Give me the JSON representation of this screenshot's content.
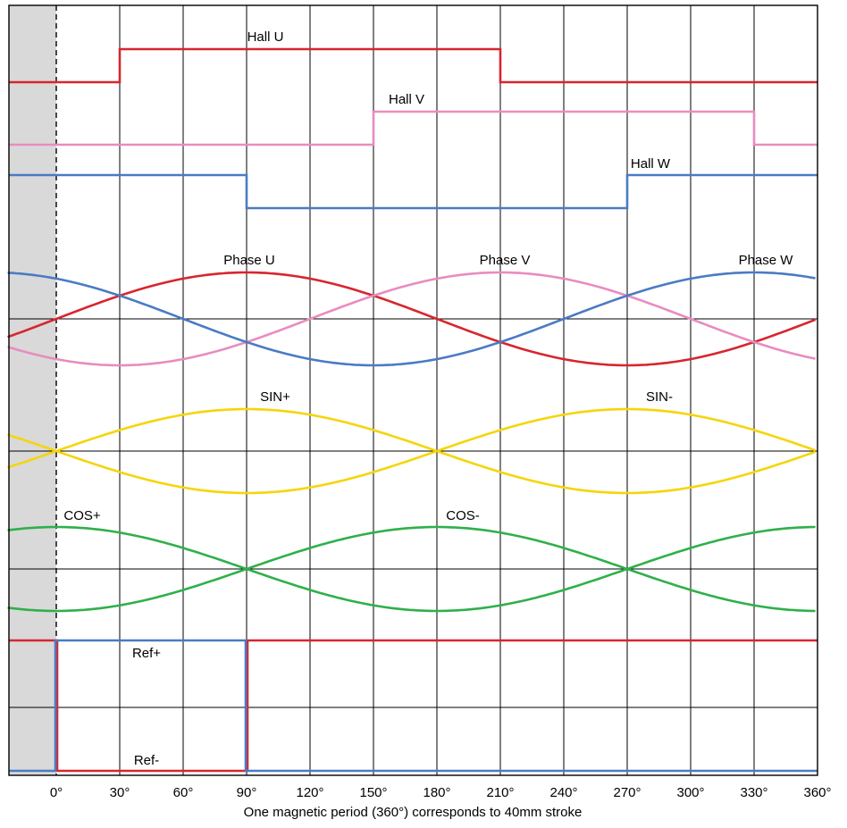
{
  "chart_data": {
    "type": "line",
    "x_unit": "°",
    "x_ticks": [
      0,
      30,
      60,
      90,
      120,
      150,
      180,
      210,
      240,
      270,
      300,
      330,
      360
    ],
    "x_tick_labels": [
      "0°",
      "30°",
      "60°",
      "90°",
      "120°",
      "150°",
      "180°",
      "210°",
      "240°",
      "270°",
      "300°",
      "330°",
      "360°"
    ],
    "xlim": [
      -23,
      360
    ],
    "xlabel": "One magnetic period (360°) corresponds to 40mm stroke",
    "grid": true,
    "shaded_region": [
      -23,
      0
    ],
    "signals": [
      {
        "name": "Hall U",
        "color": "#d7262e",
        "kind": "square",
        "transitions": [
          30,
          210
        ],
        "start_high": false
      },
      {
        "name": "Hall V",
        "color": "#e98cbf",
        "kind": "square",
        "transitions": [
          150,
          330
        ],
        "start_high": false
      },
      {
        "name": "Hall W",
        "color": "#4a7bc4",
        "kind": "square",
        "transitions": [
          90,
          270
        ],
        "start_high": true
      },
      {
        "name": "Phase U",
        "color": "#d7262e",
        "kind": "sine",
        "phase_deg": 0
      },
      {
        "name": "Phase V",
        "color": "#e98cbf",
        "kind": "sine",
        "phase_deg": -120
      },
      {
        "name": "Phase W",
        "color": "#4a7bc4",
        "kind": "sine",
        "phase_deg": 120
      },
      {
        "name": "SIN+",
        "color": "#f5d50a",
        "kind": "sine",
        "period_deg": 360,
        "phase_deg": 0
      },
      {
        "name": "SIN-",
        "color": "#f5d50a",
        "kind": "sine",
        "period_deg": 360,
        "phase_deg": 180
      },
      {
        "name": "COS+",
        "color": "#2fb04a",
        "kind": "cos",
        "phase_deg": 0
      },
      {
        "name": "COS-",
        "color": "#2fb04a",
        "kind": "cos",
        "phase_deg": 180
      },
      {
        "name": "Ref+",
        "color": "#4a7bc4",
        "kind": "pulse",
        "pulse": [
          0,
          90
        ],
        "pulse_high": true
      },
      {
        "name": "Ref-",
        "color": "#d7262e",
        "kind": "pulse",
        "pulse": [
          0,
          90
        ],
        "pulse_high": false
      }
    ]
  }
}
